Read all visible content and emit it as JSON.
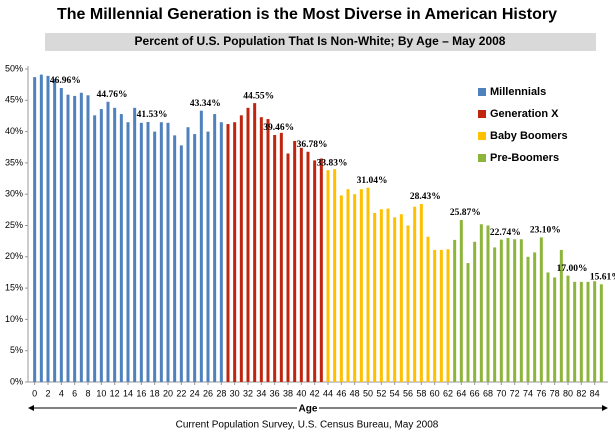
{
  "chart_data": {
    "type": "bar",
    "title": "The Millennial Generation is the Most Diverse in American History",
    "subtitle": "Percent of U.S. Population That Is Non-White; By Age – May 2008",
    "x_label": "Age",
    "source": "Current Population Survey, U.S. Census Bureau, May 2008",
    "x": [
      0,
      1,
      2,
      3,
      4,
      5,
      6,
      7,
      8,
      9,
      10,
      11,
      12,
      13,
      14,
      15,
      16,
      17,
      18,
      19,
      20,
      21,
      22,
      23,
      24,
      25,
      26,
      27,
      28,
      29,
      30,
      31,
      32,
      33,
      34,
      35,
      36,
      37,
      38,
      39,
      40,
      41,
      42,
      43,
      44,
      45,
      46,
      47,
      48,
      49,
      50,
      51,
      52,
      53,
      54,
      55,
      56,
      57,
      58,
      59,
      60,
      61,
      62,
      63,
      64,
      65,
      66,
      67,
      68,
      69,
      70,
      71,
      72,
      73,
      74,
      75,
      76,
      77,
      78,
      79,
      80,
      81,
      82,
      83,
      84,
      85
    ],
    "series": [
      {
        "name": "Millennials",
        "color": "#4f81bd",
        "values": [
          48.7,
          49.1,
          48.9,
          48.4,
          46.96,
          45.9,
          45.7,
          46.2,
          45.8,
          42.6,
          43.6,
          44.76,
          43.8,
          42.8,
          41.5,
          43.8,
          41.4,
          41.53,
          40.0,
          41.5,
          41.4,
          39.4,
          37.8,
          40.7,
          39.6,
          43.34,
          40.0,
          42.8,
          41.5,
          null,
          null,
          null,
          null,
          null,
          null,
          null,
          null,
          null,
          null,
          null,
          null,
          null,
          null,
          null,
          null,
          null,
          null,
          null,
          null,
          null,
          null,
          null,
          null,
          null,
          null,
          null,
          null,
          null,
          null,
          null,
          null,
          null,
          null,
          null,
          null,
          null,
          null,
          null,
          null,
          null,
          null,
          null,
          null,
          null,
          null,
          null,
          null,
          null,
          null,
          null,
          null,
          null,
          null,
          null,
          null,
          null
        ],
        "value_labels": [
          null,
          null,
          null,
          null,
          "46.96%",
          null,
          null,
          null,
          null,
          null,
          null,
          "44.76%",
          null,
          null,
          null,
          null,
          null,
          "41.53%",
          null,
          null,
          null,
          null,
          null,
          null,
          null,
          "43.34%",
          null,
          null,
          null,
          null,
          null,
          null,
          null,
          null,
          null,
          null,
          null,
          null,
          null,
          null,
          null,
          null,
          null,
          null,
          null,
          null,
          null,
          null,
          null,
          null,
          null,
          null,
          null,
          null,
          null,
          null,
          null,
          null,
          null,
          null,
          null,
          null,
          null,
          null,
          null,
          null,
          null,
          null,
          null,
          null,
          null,
          null,
          null,
          null,
          null,
          null,
          null,
          null,
          null,
          null,
          null,
          null,
          null,
          null,
          null,
          null
        ]
      },
      {
        "name": "Generation X",
        "color": "#c0250f",
        "values": [
          null,
          null,
          null,
          null,
          null,
          null,
          null,
          null,
          null,
          null,
          null,
          null,
          null,
          null,
          null,
          null,
          null,
          null,
          null,
          null,
          null,
          null,
          null,
          null,
          null,
          null,
          null,
          null,
          null,
          41.2,
          41.5,
          42.6,
          43.8,
          44.55,
          42.3,
          42.0,
          39.46,
          39.8,
          36.5,
          38.5,
          37.4,
          36.78,
          35.4,
          35.7,
          null,
          null,
          null,
          null,
          null,
          null,
          null,
          null,
          null,
          null,
          null,
          null,
          null,
          null,
          null,
          null,
          null,
          null,
          null,
          null,
          null,
          null,
          null,
          null,
          null,
          null,
          null,
          null,
          null,
          null,
          null,
          null,
          null,
          null,
          null,
          null,
          null,
          null,
          null,
          null,
          null,
          null
        ],
        "value_labels": [
          null,
          null,
          null,
          null,
          null,
          null,
          null,
          null,
          null,
          null,
          null,
          null,
          null,
          null,
          null,
          null,
          null,
          null,
          null,
          null,
          null,
          null,
          null,
          null,
          null,
          null,
          null,
          null,
          null,
          null,
          null,
          null,
          null,
          "44.55%",
          null,
          null,
          "39.46%",
          null,
          null,
          null,
          null,
          "36.78%",
          null,
          null,
          null,
          null,
          null,
          null,
          null,
          null,
          null,
          null,
          null,
          null,
          null,
          null,
          null,
          null,
          null,
          null,
          null,
          null,
          null,
          null,
          null,
          null,
          null,
          null,
          null,
          null,
          null,
          null,
          null,
          null,
          null,
          null,
          null,
          null,
          null,
          null,
          null,
          null,
          null,
          null,
          null,
          null
        ]
      },
      {
        "name": "Baby Boomers",
        "color": "#ffc000",
        "values": [
          null,
          null,
          null,
          null,
          null,
          null,
          null,
          null,
          null,
          null,
          null,
          null,
          null,
          null,
          null,
          null,
          null,
          null,
          null,
          null,
          null,
          null,
          null,
          null,
          null,
          null,
          null,
          null,
          null,
          null,
          null,
          null,
          null,
          null,
          null,
          null,
          null,
          null,
          null,
          null,
          null,
          null,
          null,
          null,
          33.83,
          34.0,
          29.8,
          30.8,
          30.0,
          30.8,
          31.04,
          27.0,
          27.6,
          27.7,
          26.3,
          26.8,
          25.0,
          28.0,
          28.43,
          23.2,
          21.1,
          21.1,
          21.2,
          null,
          null,
          null,
          null,
          null,
          null,
          null,
          null,
          null,
          null,
          null,
          null,
          null,
          null,
          null,
          null,
          null,
          null,
          null,
          null,
          null,
          null,
          null
        ],
        "value_labels": [
          null,
          null,
          null,
          null,
          null,
          null,
          null,
          null,
          null,
          null,
          null,
          null,
          null,
          null,
          null,
          null,
          null,
          null,
          null,
          null,
          null,
          null,
          null,
          null,
          null,
          null,
          null,
          null,
          null,
          null,
          null,
          null,
          null,
          null,
          null,
          null,
          null,
          null,
          null,
          null,
          null,
          null,
          null,
          null,
          "33.83%",
          null,
          null,
          null,
          null,
          null,
          "31.04%",
          null,
          null,
          null,
          null,
          null,
          null,
          null,
          "28.43%",
          null,
          null,
          null,
          null,
          null,
          null,
          null,
          null,
          null,
          null,
          null,
          null,
          null,
          null,
          null,
          null,
          null,
          null,
          null,
          null,
          null,
          null,
          null,
          null,
          null,
          null,
          null
        ]
      },
      {
        "name": "Pre-Boomers",
        "color": "#8db53c",
        "values": [
          null,
          null,
          null,
          null,
          null,
          null,
          null,
          null,
          null,
          null,
          null,
          null,
          null,
          null,
          null,
          null,
          null,
          null,
          null,
          null,
          null,
          null,
          null,
          null,
          null,
          null,
          null,
          null,
          null,
          null,
          null,
          null,
          null,
          null,
          null,
          null,
          null,
          null,
          null,
          null,
          null,
          null,
          null,
          null,
          null,
          null,
          null,
          null,
          null,
          null,
          null,
          null,
          null,
          null,
          null,
          null,
          null,
          null,
          null,
          null,
          null,
          null,
          null,
          22.7,
          25.87,
          19.0,
          22.4,
          25.2,
          25.0,
          21.5,
          22.74,
          23.0,
          22.8,
          22.8,
          20.0,
          20.7,
          23.1,
          17.5,
          16.7,
          21.1,
          17.0,
          16.0,
          16.0,
          16.0,
          16.1,
          15.61
        ],
        "value_labels": [
          null,
          null,
          null,
          null,
          null,
          null,
          null,
          null,
          null,
          null,
          null,
          null,
          null,
          null,
          null,
          null,
          null,
          null,
          null,
          null,
          null,
          null,
          null,
          null,
          null,
          null,
          null,
          null,
          null,
          null,
          null,
          null,
          null,
          null,
          null,
          null,
          null,
          null,
          null,
          null,
          null,
          null,
          null,
          null,
          null,
          null,
          null,
          null,
          null,
          null,
          null,
          null,
          null,
          null,
          null,
          null,
          null,
          null,
          null,
          null,
          null,
          null,
          null,
          null,
          "25.87%",
          null,
          null,
          null,
          null,
          null,
          "22.74%",
          null,
          null,
          null,
          null,
          null,
          "23.10%",
          null,
          null,
          null,
          "17.00%",
          null,
          null,
          null,
          null,
          "15.61%"
        ]
      }
    ],
    "xlim": [
      -1,
      86
    ],
    "xticks": [
      0,
      2,
      4,
      6,
      8,
      10,
      12,
      14,
      16,
      18,
      20,
      22,
      24,
      26,
      28,
      30,
      32,
      34,
      36,
      38,
      40,
      42,
      44,
      46,
      48,
      50,
      52,
      54,
      56,
      58,
      60,
      62,
      64,
      66,
      68,
      70,
      72,
      74,
      76,
      78,
      80,
      82,
      84
    ],
    "ylim": [
      0,
      50
    ],
    "yticks": [
      {
        "value": 0,
        "label": "0%"
      },
      {
        "value": 5,
        "label": "5%"
      },
      {
        "value": 10,
        "label": "10%"
      },
      {
        "value": 15,
        "label": "15%"
      },
      {
        "value": 20,
        "label": "20%"
      },
      {
        "value": 25,
        "label": "25%"
      },
      {
        "value": 30,
        "label": "30%"
      },
      {
        "value": 35,
        "label": "35%"
      },
      {
        "value": 40,
        "label": "40%"
      },
      {
        "value": 45,
        "label": "45%"
      },
      {
        "value": 50,
        "label": "50%"
      }
    ],
    "grid": false,
    "legend": "top-right"
  }
}
